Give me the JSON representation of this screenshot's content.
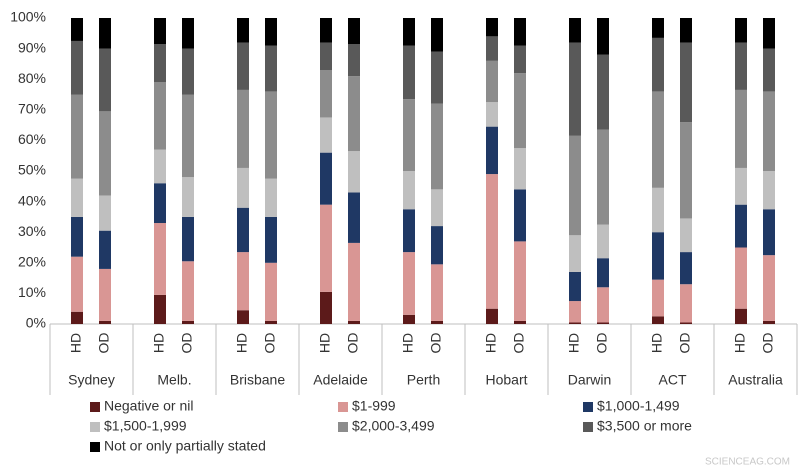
{
  "chart_data": {
    "type": "stacked_bar",
    "categories": [
      "HD",
      "OD",
      "HD",
      "OD",
      "HD",
      "OD",
      "HD",
      "OD",
      "HD",
      "OD",
      "HD",
      "OD",
      "HD",
      "OD",
      "HD",
      "OD",
      "HD",
      "OD"
    ],
    "groups": [
      "Sydney",
      "Melb.",
      "Brisbane",
      "Adelaide",
      "Perth",
      "Hobart",
      "Darwin",
      "ACT",
      "Australia"
    ],
    "ylim": [
      0,
      100
    ],
    "yticks": [
      {
        "value": 0,
        "label": "0%"
      },
      {
        "value": 10,
        "label": "10%"
      },
      {
        "value": 20,
        "label": "20%"
      },
      {
        "value": 30,
        "label": "30%"
      },
      {
        "value": 40,
        "label": "40%"
      },
      {
        "value": 50,
        "label": "50%"
      },
      {
        "value": 60,
        "label": "60%"
      },
      {
        "value": 70,
        "label": "70%"
      },
      {
        "value": 80,
        "label": "80%"
      },
      {
        "value": 90,
        "label": "90%"
      },
      {
        "value": 100,
        "label": "100%"
      }
    ],
    "grid": false,
    "series": [
      {
        "name": "Negative or nil",
        "color": "#5c1a1a",
        "values": [
          4,
          1,
          9.5,
          1,
          4.5,
          1,
          10.5,
          1,
          3,
          1,
          5,
          1,
          0.5,
          0.5,
          2.5,
          0.5,
          5,
          1
        ]
      },
      {
        "name": "$1-999",
        "color": "#d99694",
        "values": [
          18,
          17,
          23.5,
          19.5,
          19,
          19,
          28.5,
          25.5,
          20.5,
          18.5,
          44,
          26,
          7,
          11.5,
          12,
          12.5,
          20,
          21.5
        ]
      },
      {
        "name": "$1,000-1,499",
        "color": "#1f3864",
        "values": [
          13,
          12.5,
          13,
          14.5,
          14.5,
          15,
          17,
          16.5,
          14,
          12.5,
          15.5,
          17,
          9.5,
          9.5,
          15.5,
          10.5,
          14,
          15
        ]
      },
      {
        "name": "$1,500-1,999",
        "color": "#bfbfbf",
        "values": [
          12.5,
          11.5,
          11,
          13,
          13,
          12.5,
          11.5,
          13.5,
          12.5,
          12,
          8,
          13.5,
          12,
          11,
          14.5,
          11,
          12,
          12.5
        ]
      },
      {
        "name": "$2,000-3,499",
        "color": "#8c8c8c",
        "values": [
          27.5,
          27.5,
          22,
          27,
          25.5,
          28.5,
          15.5,
          24.5,
          23.5,
          28,
          13.5,
          24.5,
          32.5,
          31,
          31.5,
          31.5,
          25.5,
          26
        ]
      },
      {
        "name": "$3,500 or more",
        "color": "#595959",
        "values": [
          17.5,
          20.5,
          12.5,
          15,
          15.5,
          15,
          9,
          10.5,
          17.5,
          17,
          8,
          9,
          30.5,
          24.5,
          17.5,
          26,
          15.5,
          14
        ]
      },
      {
        "name": "Not or only partially stated",
        "color": "#000000",
        "values": [
          7.5,
          10,
          8.5,
          10,
          8,
          9,
          8,
          8.5,
          9,
          11,
          6,
          9,
          8,
          12,
          6.5,
          8,
          8,
          10
        ]
      }
    ],
    "watermark": "SCIENCEAG.COM"
  }
}
